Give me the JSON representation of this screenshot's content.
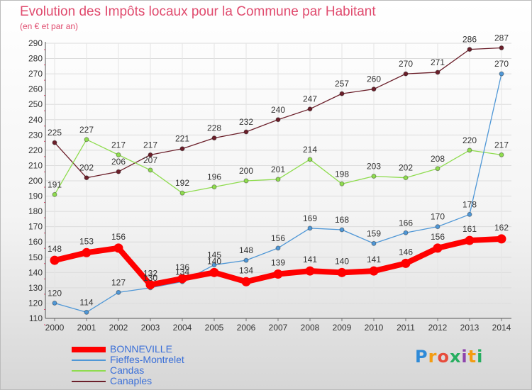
{
  "chart_data": {
    "type": "line",
    "title": "Evolution des Impôts locaux pour la Commune par Habitant",
    "subtitle": "(en € et par an)",
    "x": [
      "2000",
      "2001",
      "2002",
      "2003",
      "2004",
      "2005",
      "2006",
      "2007",
      "2008",
      "2009",
      "2010",
      "2011",
      "2012",
      "2013",
      "2014"
    ],
    "ylim": [
      110,
      290
    ],
    "yticks": [
      110,
      120,
      130,
      140,
      150,
      160,
      170,
      180,
      190,
      200,
      210,
      220,
      230,
      240,
      250,
      260,
      270,
      280,
      290
    ],
    "grid": true,
    "legend_position": "bottom-left",
    "series": [
      {
        "name": "BONNEVILLE",
        "color": "#ff0000",
        "values": [
          148,
          153,
          156,
          132,
          136,
          140,
          134,
          139,
          141,
          140,
          141,
          146,
          156,
          161,
          162
        ]
      },
      {
        "name": "Fieffes-Montrelet",
        "color": "#4f97d6",
        "values": [
          120,
          114,
          127,
          130,
          134,
          145,
          148,
          156,
          169,
          168,
          159,
          166,
          170,
          178,
          270
        ]
      },
      {
        "name": "Candas",
        "color": "#8fdc4f",
        "values": [
          191,
          227,
          217,
          207,
          192,
          196,
          200,
          201,
          214,
          198,
          203,
          202,
          208,
          220,
          217
        ]
      },
      {
        "name": "Canaples",
        "color": "#6b1f2a",
        "values": [
          225,
          202,
          206,
          217,
          221,
          228,
          232,
          240,
          247,
          257,
          260,
          270,
          271,
          286,
          287
        ]
      }
    ]
  },
  "logo": {
    "letters": [
      "P",
      "r",
      "o",
      "x",
      "i",
      "t",
      "i"
    ],
    "colors": [
      "#2e8ad8",
      "#f39c12",
      "#e74c3c",
      "#27ae60",
      "#8e44ad",
      "#f39c12",
      "#27ae60"
    ]
  }
}
